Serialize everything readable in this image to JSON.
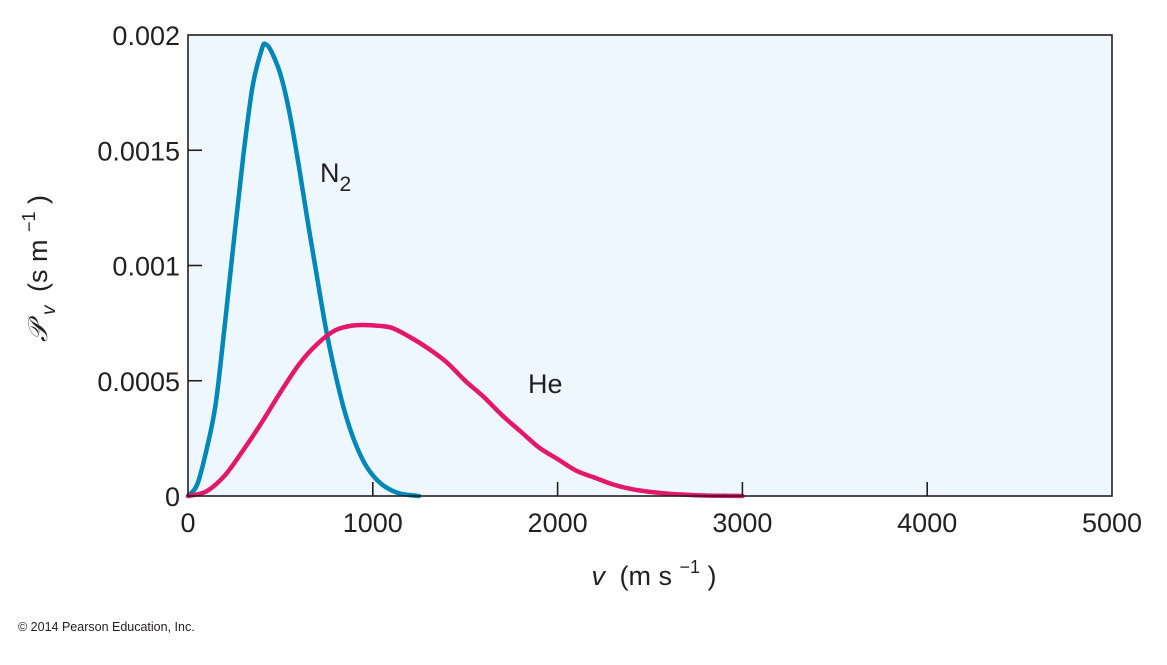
{
  "chart_data": {
    "type": "line",
    "xlabel": {
      "symbol": "v",
      "units": "(m s",
      "units_exp": "−1",
      "units_close": ")"
    },
    "ylabel": {
      "symbol": "𝒫",
      "subscript": "v",
      "units": "(s m",
      "units_exp": "−1",
      "units_close": ")"
    },
    "xlim": [
      0,
      5000
    ],
    "ylim": [
      0,
      0.002
    ],
    "x_ticks": [
      0,
      1000,
      2000,
      3000,
      4000,
      5000
    ],
    "x_tick_labels": [
      "0",
      "1000",
      "2000",
      "3000",
      "4000",
      "5000"
    ],
    "y_ticks": [
      0,
      0.0005,
      0.001,
      0.0015,
      0.002
    ],
    "y_tick_labels": [
      "0",
      "0.0005",
      "0.001",
      "0.0015",
      "0.002"
    ],
    "plot_background": "#eef7fd",
    "series": [
      {
        "name": "N2",
        "label": {
          "text": "N",
          "subscript": "2"
        },
        "color": "#0088b8",
        "x": [
          0,
          50,
          100,
          150,
          200,
          250,
          300,
          350,
          400,
          420,
          450,
          500,
          550,
          600,
          650,
          700,
          750,
          800,
          850,
          900,
          950,
          1000,
          1050,
          1100,
          1150,
          1200,
          1250
        ],
        "y": [
          0,
          5e-05,
          0.0002,
          0.0004,
          0.00075,
          0.00112,
          0.00148,
          0.00178,
          0.00194,
          0.00196,
          0.00193,
          0.00183,
          0.00166,
          0.00143,
          0.00118,
          0.00094,
          0.00071,
          0.00052,
          0.00036,
          0.00024,
          0.00015,
          9e-05,
          5e-05,
          2.5e-05,
          1e-05,
          4e-06,
          0
        ]
      },
      {
        "name": "He",
        "label": {
          "text": "He",
          "subscript": ""
        },
        "color": "#e3176b",
        "x": [
          0,
          100,
          200,
          300,
          400,
          500,
          600,
          700,
          800,
          900,
          1000,
          1100,
          1200,
          1300,
          1400,
          1500,
          1600,
          1700,
          1800,
          1900,
          2000,
          2100,
          2200,
          2300,
          2400,
          2500,
          2600,
          2700,
          2800,
          2900,
          3000
        ],
        "y": [
          0,
          2e-05,
          9e-05,
          0.0002,
          0.00032,
          0.00045,
          0.00057,
          0.00066,
          0.00072,
          0.00074,
          0.00074,
          0.00073,
          0.00069,
          0.00064,
          0.00058,
          0.0005,
          0.00043,
          0.00035,
          0.00028,
          0.00021,
          0.00016,
          0.00011,
          8e-05,
          5e-05,
          3e-05,
          1.8e-05,
          1e-05,
          5e-06,
          2e-06,
          1e-06,
          0
        ]
      }
    ]
  },
  "copyright": "© 2014 Pearson Education, Inc."
}
